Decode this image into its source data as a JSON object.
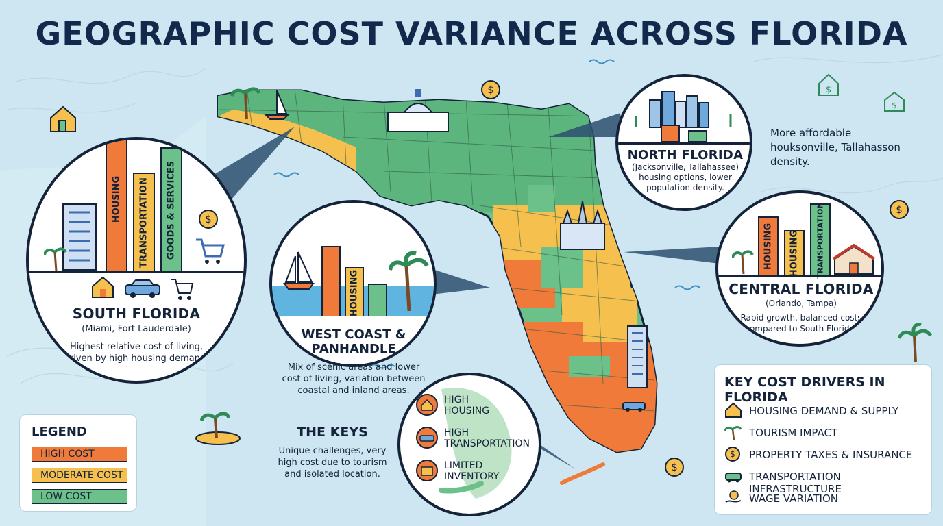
{
  "title": "GEOGRAPHIC COST VARIANCE ACROSS FLORIDA",
  "colors": {
    "high": "#ef7a3a",
    "moderate": "#f6c04f",
    "low": "#6cc08a",
    "water": "#cde6f2",
    "outline": "#14233a"
  },
  "south_florida": {
    "title": "SOUTH FLORIDA",
    "subtitle": "(Miami, Fort Lauderdale)",
    "description_line1": "Highest relative cost of living,",
    "description_line2": "driven by high housing demand.",
    "bars": [
      {
        "label": "HOUSING",
        "level": "high",
        "value": 0.92
      },
      {
        "label": "TRANSPORTATION",
        "level": "moderate",
        "value": 0.62
      },
      {
        "label": "GOODS & SERVICES",
        "level": "low",
        "value": 0.78
      }
    ]
  },
  "west_coast": {
    "title": "WEST COAST & PANHANDLE",
    "description_line1": "Mix of scenic areas and lower",
    "description_line2": "cost of living, variation between",
    "description_line3": "coastal and inland areas.",
    "bars": [
      {
        "label": "",
        "level": "high",
        "value": 0.85
      },
      {
        "label": "HOUSING",
        "level": "moderate",
        "value": 0.6
      },
      {
        "label": "",
        "level": "low",
        "value": 0.4
      }
    ]
  },
  "north_florida": {
    "title": "NORTH FLORIDA",
    "subtitle": "(Jacksonville, Tallahassee)",
    "description_line1": "housing options, lower",
    "description_line2": "population density.",
    "side_line1": "More affordable",
    "side_line2": "houksonville, Tallahasson",
    "side_line3": "density."
  },
  "central_florida": {
    "title": "CENTRAL FLORIDA",
    "subtitle": "(Orlando, Tampa)",
    "description_line1": "Rapid growth, balanced costs",
    "description_line2": "compared to South Florida.",
    "bars": [
      {
        "label": "HOUSING",
        "level": "high",
        "value": 0.78
      },
      {
        "label": "HOUSING",
        "level": "moderate",
        "value": 0.6
      },
      {
        "label": "TRANSPORTATION",
        "level": "low",
        "value": 0.95
      }
    ]
  },
  "the_keys": {
    "title": "THE KEYS",
    "description_line1": "Unique challenges, very",
    "description_line2": "high cost due to tourism",
    "description_line3": "and isolated location.",
    "items": [
      {
        "line1": "HIGH",
        "line2": "HOUSING",
        "icon": "house-icon"
      },
      {
        "line1": "HIGH",
        "line2": "TRANSPORTATION",
        "icon": "car-icon"
      },
      {
        "line1": "LIMITED",
        "line2": "INVENTORY",
        "icon": "store-icon"
      }
    ]
  },
  "legend": {
    "title": "LEGEND",
    "items": [
      {
        "label": "HIGH COST",
        "level": "high"
      },
      {
        "label": "MODERATE COST",
        "level": "moderate"
      },
      {
        "label": "LOW COST",
        "level": "low"
      }
    ]
  },
  "key_drivers": {
    "title": "KEY COST DRIVERS IN FLORIDA",
    "items": [
      {
        "label": "HOUSING DEMAND & SUPPLY",
        "icon": "house-icon"
      },
      {
        "label": "TOURISM IMPACT",
        "icon": "palm-tree-icon"
      },
      {
        "label": "PROPERTY TAXES & INSURANCE",
        "icon": "dollar-coin-icon"
      },
      {
        "label": "TRANSPORTATION INFRASTRUCTURE",
        "icon": "car-icon"
      },
      {
        "label": "WAGE VARIATION",
        "icon": "hand-money-icon"
      }
    ]
  }
}
